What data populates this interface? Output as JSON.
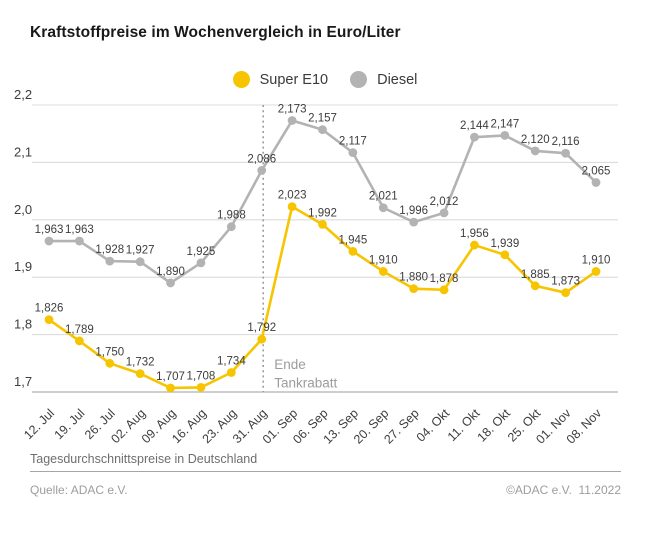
{
  "title": "Kraftstoffpreise im Wochenvergleich in Euro/Liter",
  "legend": [
    {
      "label": "Super E10",
      "color": "#f7c500"
    },
    {
      "label": "Diesel",
      "color": "#b3b3b3"
    }
  ],
  "chart_data": {
    "type": "line",
    "title": "Kraftstoffpreise im Wochenvergleich in Euro/Liter",
    "categories": [
      "12. Jul",
      "19. Jul",
      "26. Jul",
      "02. Aug",
      "09. Aug",
      "16. Aug",
      "23. Aug",
      "31. Aug",
      "01. Sep",
      "06. Sep",
      "13. Sep",
      "20. Sep",
      "27. Sep",
      "04. Okt",
      "11. Okt",
      "18. Okt",
      "25. Okt",
      "01. Nov",
      "08. Nov"
    ],
    "series": [
      {
        "name": "Super E10",
        "color": "#f7c500",
        "values": [
          1.826,
          1.789,
          1.75,
          1.732,
          1.707,
          1.708,
          1.734,
          1.792,
          2.023,
          1.992,
          1.945,
          1.91,
          1.88,
          1.878,
          1.956,
          1.939,
          1.885,
          1.873,
          1.91
        ],
        "labels": [
          "1,826",
          "1,789",
          "1,750",
          "1,732",
          "1,707",
          "1,708",
          "1,734",
          "1,792",
          "2,023",
          "1,992",
          "1,945",
          "1,910",
          "1,880",
          "1,878",
          "1,956",
          "1,939",
          "1,885",
          "1,873",
          "1,910"
        ]
      },
      {
        "name": "Diesel",
        "color": "#b3b3b3",
        "values": [
          1.963,
          1.963,
          1.928,
          1.927,
          1.89,
          1.925,
          1.988,
          2.086,
          2.173,
          2.157,
          2.117,
          2.021,
          1.996,
          2.012,
          2.144,
          2.147,
          2.12,
          2.116,
          2.065
        ],
        "labels": [
          "1,963",
          "1,963",
          "1,928",
          "1,927",
          "1,890",
          "1,925",
          "1,988",
          "2,086",
          "2,173",
          "2,157",
          "2,117",
          "2,021",
          "1,996",
          "2,012",
          "2,144",
          "2,147",
          "2,120",
          "2,116",
          "2,065"
        ]
      }
    ],
    "ylim": [
      1.7,
      2.2
    ],
    "yticks": {
      "values": [
        2.2,
        2.1,
        2.0,
        1.9,
        1.8,
        1.7
      ],
      "labels": [
        "2,2",
        "2,1",
        "2,0",
        "1,9",
        "1,8",
        "1,7"
      ]
    },
    "annotation": {
      "category": "31. Aug",
      "lines": [
        "Ende",
        "Tankrabatt"
      ]
    },
    "grid": "horizontal",
    "legend_position": "top-center",
    "text_color": "#3d3d3d",
    "grid_color": "#dcdcdc",
    "axis_color": "#bdbdbd",
    "annotation_color": "#9c9c9c"
  },
  "footer": {
    "note": "Tagesdurchschnittspreise in Deutschland",
    "source": "Quelle: ADAC e.V.",
    "copyright": "©ADAC e.V.  11.2022"
  }
}
